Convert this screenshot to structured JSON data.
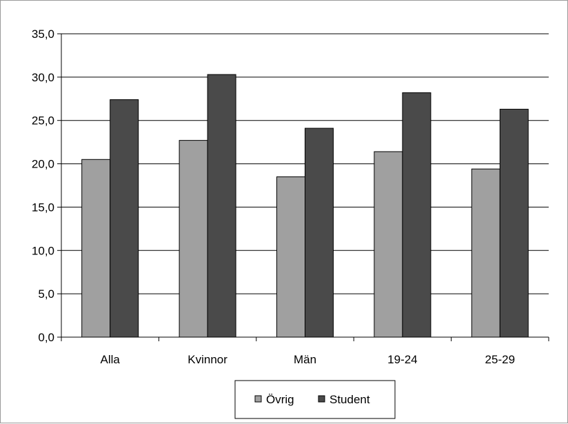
{
  "chart_data": {
    "type": "bar",
    "categories": [
      "Alla",
      "Kvinnor",
      "Män",
      "19-24",
      "25-29"
    ],
    "series": [
      {
        "name": "Övrig",
        "values": [
          20.5,
          22.7,
          18.5,
          21.4,
          19.4
        ],
        "color": "#a0a0a0"
      },
      {
        "name": "Student",
        "values": [
          27.4,
          30.3,
          24.1,
          28.2,
          26.3
        ],
        "color": "#4a4a4a"
      }
    ],
    "ylim": [
      0,
      35
    ],
    "yticks": [
      "0,0",
      "5,0",
      "10,0",
      "15,0",
      "20,0",
      "25,0",
      "30,0",
      "35,0"
    ],
    "grid": true,
    "legend_position": "bottom"
  }
}
